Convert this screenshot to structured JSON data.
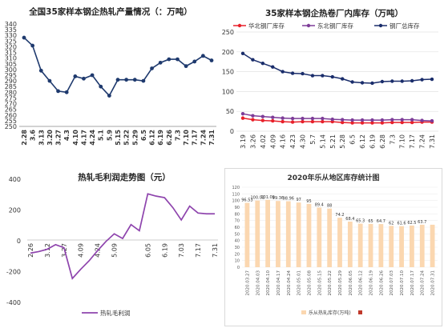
{
  "chart_data": [
    {
      "type": "line",
      "title": "全国35家样本钢企热轧产量情况（：万吨）",
      "categories": [
        "2.28",
        "3.6",
        "3.13",
        "3.20",
        "3.27",
        "4.3",
        "4.10",
        "4.17",
        "4.24",
        "5.1",
        "5.9",
        "5.15",
        "5.22",
        "5.29",
        "6.5",
        "6.12",
        "6.19",
        "6.26",
        "7.3",
        "7.10",
        "7.17",
        "7.24",
        "7.31"
      ],
      "tick_labels": [
        "2.28",
        "3.6",
        "3.13",
        "3.20",
        "3.27",
        "4.3",
        "4.10",
        "4.17",
        "4.24",
        "5.1",
        "5.9",
        "5.15",
        "5.22",
        "5.29",
        "6.5",
        "6.12",
        "6.19",
        "6.26",
        "7.3",
        "7.10",
        "7.17",
        "7.24",
        "7.31"
      ],
      "values": [
        328,
        321,
        299,
        290,
        281,
        280,
        294,
        292,
        295,
        285,
        277,
        291,
        291,
        291,
        290,
        301,
        306,
        309,
        309,
        303,
        307,
        312,
        308
      ],
      "ylim": [
        250,
        340
      ],
      "yticks": [
        250,
        255,
        260,
        265,
        270,
        275,
        280,
        285,
        290,
        295,
        300,
        305,
        310,
        315,
        320,
        325,
        330,
        335,
        340
      ],
      "color": "#1f3a6e"
    },
    {
      "type": "line",
      "title": "35家样本钢企热卷厂内库存（万吨）",
      "categories": [
        "3.19",
        "3.26",
        "4.02",
        "4.09",
        "4.16",
        "4.23",
        "4.30",
        "5.7",
        "5.14",
        "5.21",
        "5.28",
        "6.5",
        "6.12",
        "6.19",
        "6.28",
        "7.3",
        "7.10",
        "7.17",
        "7.24",
        "7.31"
      ],
      "tick_labels": [
        "3.19",
        "3.26",
        "4.02",
        "4.09",
        "4.16",
        "4.23",
        "4.30",
        "5.7",
        "5.14",
        "5.21",
        "5.28",
        "6.5",
        "6.12",
        "6.19",
        "6.28",
        "7.3",
        "7.10",
        "7.17",
        "7.24",
        "7.31"
      ],
      "series": [
        {
          "name": "华北钢厂库存",
          "color": "#e8202a",
          "values": [
            33,
            29,
            27,
            26,
            24,
            23,
            24,
            24,
            24,
            24,
            22,
            21,
            21,
            21,
            21,
            22,
            22,
            22,
            23,
            23
          ]
        },
        {
          "name": "东北钢厂库存",
          "color": "#7d3c98",
          "values": [
            44,
            39,
            37,
            35,
            33,
            32,
            32,
            32,
            32,
            30,
            29,
            28,
            28,
            28,
            28,
            29,
            29,
            29,
            27,
            26
          ]
        },
        {
          "name": "钢厂总库存",
          "color": "#1a2d6b",
          "values": [
            196,
            180,
            171,
            162,
            150,
            146,
            145,
            140,
            140,
            137,
            132,
            124,
            122,
            121,
            125,
            126,
            126,
            127,
            130,
            131
          ]
        }
      ],
      "ylim": [
        0,
        250
      ],
      "yticks": [
        0,
        50,
        100,
        150,
        200,
        250
      ]
    },
    {
      "type": "line",
      "title": "热轧毛利润走势图（元）",
      "categories": [
        "2.26",
        "3.5",
        "3.12",
        "3.19",
        "3.27",
        "4.2",
        "4.09",
        "4.16",
        "4.24",
        "5.1",
        "5.09",
        "5.16",
        "5.22",
        "5.29",
        "6.05",
        "6.12",
        "6.19",
        "6.26",
        "7.03",
        "7.10",
        "7.17",
        "7.24",
        "7.31"
      ],
      "tick_labels": [
        "2.26",
        "3.12",
        "3.27",
        "4.09",
        "4.24",
        "5.09",
        "6.05",
        "6.19",
        "7.03",
        "7.17",
        "7.31"
      ],
      "series": [
        {
          "name": "热轧毛利润",
          "color": "#8e44ad",
          "values": [
            -85,
            -75,
            -60,
            -30,
            -50,
            -250,
            -190,
            -135,
            -70,
            -10,
            40,
            10,
            100,
            60,
            300,
            285,
            275,
            210,
            130,
            220,
            175,
            170,
            170
          ]
        }
      ],
      "ylim": [
        -400,
        400
      ],
      "yticks": [
        -400,
        -200,
        0,
        200,
        400
      ]
    },
    {
      "type": "bar",
      "title": "2020年乐从地区库存统计图",
      "categories": [
        "2020.03.27",
        "2020.04.03",
        "2020.04.10",
        "2020.04.17",
        "2020.04.24",
        "2020.05.01",
        "2020.05.08",
        "2020.05.15",
        "2020.05.22",
        "2020.05.29",
        "2020.06.05",
        "2020.06.12",
        "2020.06.19",
        "2020.06.26",
        "2020.07.03",
        "2020.07.10",
        "2020.07.17",
        "2020.07.24",
        "2020.07.31"
      ],
      "values": [
        96.53,
        100.01,
        101.09,
        99.36,
        98.96,
        97,
        95,
        89.4,
        88,
        74.2,
        68.4,
        65.3,
        65,
        64.7,
        62,
        61.6,
        62.5,
        63.7,
        63.7
      ],
      "data_labels": [
        "96.53",
        "100.01",
        "101.09",
        "99.36",
        "98.96",
        "97",
        "95",
        "89.4",
        "88",
        "74.2",
        "68.4",
        "65.3",
        "65",
        "64.7",
        "62",
        "61.6",
        "62.5",
        "63.7",
        ""
      ],
      "legend": [
        "乐从热轧库存(万吨)"
      ],
      "color": "#fbd7b0",
      "ylim": [
        0,
        120
      ],
      "yticks": [
        0,
        10,
        20,
        30,
        40,
        50,
        60,
        70,
        80,
        90,
        100,
        110,
        120
      ]
    }
  ]
}
